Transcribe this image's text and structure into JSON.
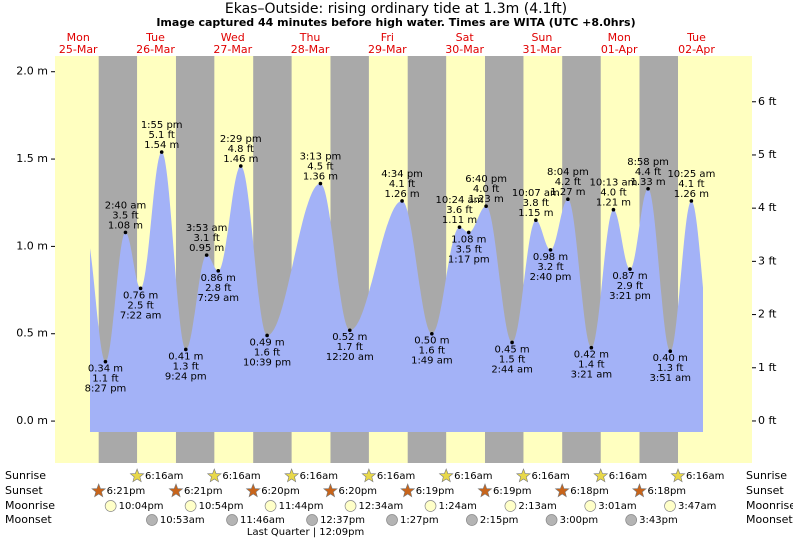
{
  "chart_data": {
    "type": "tide",
    "title": "Ekas–Outside: rising  ordinary tide at 1.3m (4.1ft)",
    "subtitle": "Image captured 44 minutes before high water. Times are WITA (UTC +8.0hrs)",
    "ylim": [
      -0.24,
      2.09
    ],
    "yticks": [
      {
        "value": 0,
        "label": "0.0 m"
      },
      {
        "value": 0.5,
        "label": "0.5 m"
      },
      {
        "value": 1,
        "label": "1.0 m"
      },
      {
        "value": 1.5,
        "label": "1.5 m"
      },
      {
        "value": 2,
        "label": "2.0 m"
      }
    ],
    "y2lim": [
      -0.79,
      6.86
    ],
    "y2ticks": [
      {
        "value": 0,
        "label": "0 ft"
      },
      {
        "value": 1,
        "label": "1 ft"
      },
      {
        "value": 2,
        "label": "2 ft"
      },
      {
        "value": 3,
        "label": "3 ft"
      },
      {
        "value": 4,
        "label": "4 ft"
      },
      {
        "value": 5,
        "label": "5 ft"
      },
      {
        "value": 6,
        "label": "6 ft"
      }
    ],
    "row_labels": {
      "sunrise": "Sunrise",
      "sunset": "Sunset",
      "moonrise": "Moonrise",
      "moonset": "Moonset"
    },
    "days": [
      {
        "weekday": "Mon",
        "date": "25-Mar",
        "sunset": "6:21pm",
        "moonrise": "10:04pm",
        "tides": [
          {
            "time": "8:27 pm",
            "m": 0.34,
            "m_label": "0.34 m",
            "ft_label": "1.1 ft"
          }
        ]
      },
      {
        "weekday": "Tue",
        "date": "26-Mar",
        "sunrise": "6:16am",
        "sunset": "6:21pm",
        "moonrise": "10:54pm",
        "moonset": "10:53am",
        "tides": [
          {
            "time": "2:40 am",
            "m": 1.08,
            "m_label": "1.08 m",
            "ft_label": "3.5 ft"
          },
          {
            "time": "7:22 am",
            "m": 0.76,
            "m_label": "0.76 m",
            "ft_label": "2.5 ft"
          },
          {
            "time": "1:55 pm",
            "m": 1.54,
            "m_label": "1.54 m",
            "ft_label": "5.1 ft"
          },
          {
            "time": "9:24 pm",
            "m": 0.41,
            "m_label": "0.41 m",
            "ft_label": "1.3 ft"
          }
        ]
      },
      {
        "weekday": "Wed",
        "date": "27-Mar",
        "sunrise": "6:16am",
        "sunset": "6:20pm",
        "moonrise": "11:44pm",
        "moonset": "11:46am",
        "tides": [
          {
            "time": "3:53 am",
            "m": 0.95,
            "m_label": "0.95 m",
            "ft_label": "3.1 ft"
          },
          {
            "time": "7:29 am",
            "m": 0.86,
            "m_label": "0.86 m",
            "ft_label": "2.8 ft"
          },
          {
            "time": "2:29 pm",
            "m": 1.46,
            "m_label": "1.46 m",
            "ft_label": "4.8 ft"
          },
          {
            "time": "10:39 pm",
            "m": 0.49,
            "m_label": "0.49 m",
            "ft_label": "1.6 ft"
          }
        ]
      },
      {
        "weekday": "Thu",
        "date": "28-Mar",
        "sunrise": "6:16am",
        "sunset": "6:20pm",
        "moonset": "12:37pm",
        "moon_phase": "Last Quarter | 12:09pm",
        "tides": [
          {
            "time": "3:13 pm",
            "m": 1.36,
            "m_label": "1.36 m",
            "ft_label": "4.5 ft"
          }
        ]
      },
      {
        "weekday": "Fri",
        "date": "29-Mar",
        "sunrise": "6:16am",
        "sunset": "6:19pm",
        "moonrise": "12:34am",
        "moonset": "1:27pm",
        "tides": [
          {
            "time": "12:20 am",
            "m": 0.52,
            "m_label": "0.52 m",
            "ft_label": "1.7 ft"
          },
          {
            "time": "4:34 pm",
            "m": 1.26,
            "m_label": "1.26 m",
            "ft_label": "4.1 ft"
          }
        ]
      },
      {
        "weekday": "Sat",
        "date": "30-Mar",
        "sunrise": "6:16am",
        "sunset": "6:19pm",
        "moonrise": "1:24am",
        "moonset": "2:15pm",
        "tides": [
          {
            "time": "1:49 am",
            "m": 0.5,
            "m_label": "0.50 m",
            "ft_label": "1.6 ft"
          },
          {
            "time": "10:24 am",
            "m": 1.11,
            "m_label": "1.11 m",
            "ft_label": "3.6 ft"
          },
          {
            "time": "1:17 pm",
            "m": 1.08,
            "m_label": "1.08 m",
            "ft_label": "3.5 ft"
          },
          {
            "time": "6:40 pm",
            "m": 1.23,
            "m_label": "1.23 m",
            "ft_label": "4.0 ft"
          }
        ]
      },
      {
        "weekday": "Sun",
        "date": "31-Mar",
        "sunrise": "6:16am",
        "sunset": "6:18pm",
        "moonrise": "2:13am",
        "moonset": "3:00pm",
        "tides": [
          {
            "time": "2:44 am",
            "m": 0.45,
            "m_label": "0.45 m",
            "ft_label": "1.5 ft"
          },
          {
            "time": "10:07 am",
            "m": 1.15,
            "m_label": "1.15 m",
            "ft_label": "3.8 ft"
          },
          {
            "time": "2:40 pm",
            "m": 0.98,
            "m_label": "0.98 m",
            "ft_label": "3.2 ft"
          },
          {
            "time": "8:04 pm",
            "m": 1.27,
            "m_label": "1.27 m",
            "ft_label": "4.2 ft"
          }
        ]
      },
      {
        "weekday": "Mon",
        "date": "01-Apr",
        "sunrise": "6:16am",
        "sunset": "6:18pm",
        "moonrise": "3:01am",
        "moonset": "3:43pm",
        "tides": [
          {
            "time": "3:21 am",
            "m": 0.42,
            "m_label": "0.42 m",
            "ft_label": "1.4 ft"
          },
          {
            "time": "10:13 am",
            "m": 1.21,
            "m_label": "1.21 m",
            "ft_label": "4.0 ft"
          },
          {
            "time": "3:21 pm",
            "m": 0.87,
            "m_label": "0.87 m",
            "ft_label": "2.9 ft"
          },
          {
            "time": "8:58 pm",
            "m": 1.33,
            "m_label": "1.33 m",
            "ft_label": "4.4 ft"
          }
        ]
      },
      {
        "weekday": "Tue",
        "date": "02-Apr",
        "sunrise": "6:16am",
        "moonrise": "3:47am",
        "tides": [
          {
            "time": "3:51 am",
            "m": 0.4,
            "m_label": "0.40 m",
            "ft_label": "1.3 ft"
          },
          {
            "time": "10:25 am",
            "m": 1.26,
            "m_label": "1.26 m",
            "ft_label": "4.1 ft"
          }
        ]
      }
    ]
  }
}
